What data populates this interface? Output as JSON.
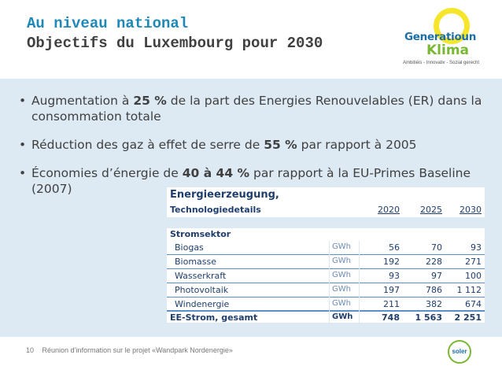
{
  "header": {
    "line1": "Au niveau national",
    "line2": "Objectifs du Luxembourg pour 2030"
  },
  "logo": {
    "word1": "Generatioun",
    "word2": "Klima",
    "tagline": "Ambitiéis - Innovativ - Sozial gerecht"
  },
  "bullets": [
    {
      "pre": "Augmentation à ",
      "bold": "25 %",
      "post": " de la part des Energies Renouvelables (ER) dans la consommation totale"
    },
    {
      "pre": "Réduction des gaz à effet de serre de ",
      "bold": "55 %",
      "post": " par rapport à 2005"
    },
    {
      "pre": "Économies d’énergie de ",
      "bold": "40 à 44 %",
      "post": " par rapport à la EU-Primes Baseline (2007)"
    }
  ],
  "table": {
    "title": "Energieerzeugung,",
    "subtitle": "Technologiedetails",
    "years": [
      "2020",
      "2025",
      "2030"
    ],
    "section": "Stromsektor",
    "rows": [
      {
        "name": "Biogas",
        "unit": "GWh",
        "v2020": "56",
        "v2025": "70",
        "v2030": "93"
      },
      {
        "name": "Biomasse",
        "unit": "GWh",
        "v2020": "192",
        "v2025": "228",
        "v2030": "271"
      },
      {
        "name": "Wasserkraft",
        "unit": "GWh",
        "v2020": "93",
        "v2025": "97",
        "v2030": "100"
      },
      {
        "name": "Photovoltaik",
        "unit": "GWh",
        "v2020": "197",
        "v2025": "786",
        "v2030": "1 112"
      },
      {
        "name": "Windenergie",
        "unit": "GWh",
        "v2020": "211",
        "v2025": "382",
        "v2030": "674"
      }
    ],
    "total": {
      "name": "EE-Strom, gesamt",
      "unit": "GWh",
      "v2020": "748",
      "v2025": "1 563",
      "v2030": "2 251"
    }
  },
  "footer": {
    "page": "10",
    "text": "Réunion d’information sur le projet «Wandpark Nordenergie»",
    "brand": "soler"
  },
  "colors": {
    "accent": "#1e88b8",
    "band": "#dde9f3",
    "table_text": "#1f3e6e",
    "logo_yellow": "#f5e62b",
    "logo_green": "#7ab833"
  }
}
